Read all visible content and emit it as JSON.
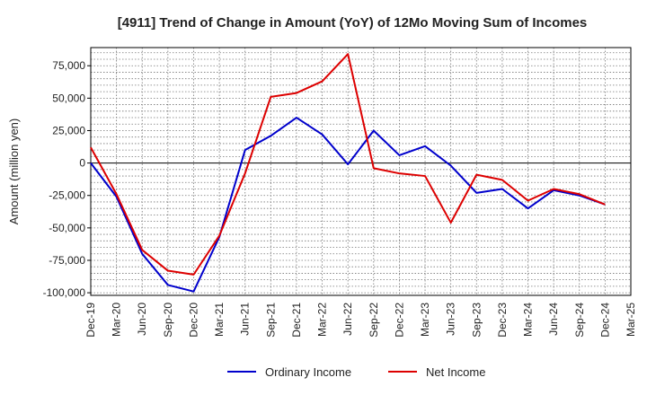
{
  "chart_data": {
    "type": "line",
    "title": "[4911]  Trend of Change in Amount (YoY) of 12Mo Moving Sum of Incomes",
    "xlabel": "",
    "ylabel": "Amount (million yen)",
    "categories": [
      "Dec-19",
      "Mar-20",
      "Jun-20",
      "Sep-20",
      "Dec-20",
      "Mar-21",
      "Jun-21",
      "Sep-21",
      "Dec-21",
      "Mar-22",
      "Jun-22",
      "Sep-22",
      "Dec-22",
      "Mar-23",
      "Jun-23",
      "Sep-23",
      "Dec-23",
      "Mar-24",
      "Jun-24",
      "Sep-24",
      "Dec-24",
      "Mar-25"
    ],
    "ylim": [
      -102000,
      89000
    ],
    "yticks": [
      75000,
      50000,
      25000,
      0,
      -25000,
      -50000,
      -75000,
      -100000
    ],
    "ytick_labels": [
      "75,000",
      "50,000",
      "25,000",
      "0",
      "-25,000",
      "-50,000",
      "-75,000",
      "-100,000"
    ],
    "grid": true,
    "legend_position": "bottom",
    "series": [
      {
        "name": "Ordinary Income",
        "color": "#0000cc",
        "values": [
          0,
          -26000,
          -70000,
          -94000,
          -99000,
          -57000,
          10000,
          21000,
          35000,
          22000,
          -1000,
          25000,
          6000,
          13000,
          -2000,
          -23000,
          -20000,
          -35000,
          -21000,
          -25000,
          -32000,
          null
        ]
      },
      {
        "name": "Net Income",
        "color": "#dd0000",
        "values": [
          12000,
          -24000,
          -67000,
          -83000,
          -86000,
          -56000,
          -8000,
          51000,
          54000,
          63000,
          84000,
          -4000,
          -8000,
          -10000,
          -46000,
          -9000,
          -13000,
          -29000,
          -20000,
          -24000,
          -32000,
          null
        ]
      }
    ]
  }
}
